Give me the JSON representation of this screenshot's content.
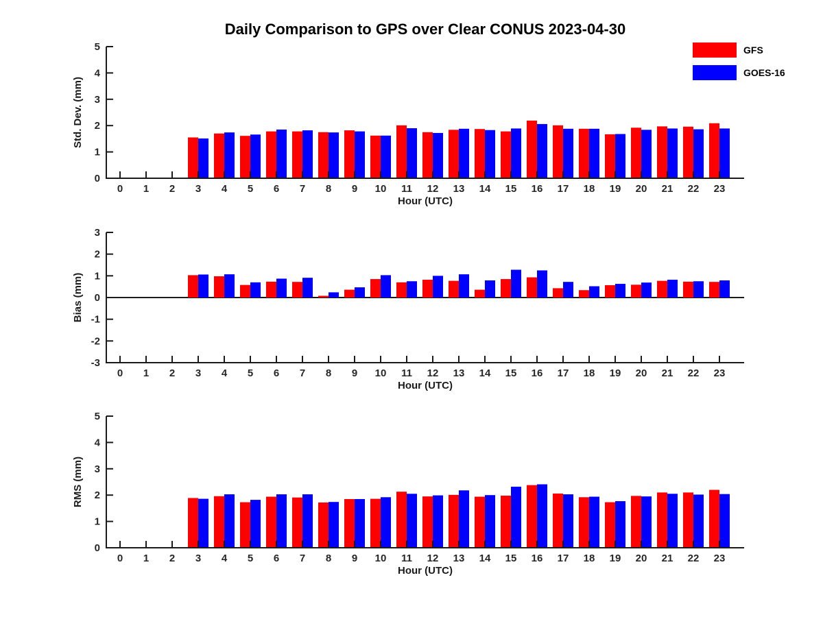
{
  "title": "Daily Comparison to GPS over Clear CONUS 2023-04-30",
  "legend": {
    "items": [
      {
        "label": "GFS",
        "color": "#ff0000"
      },
      {
        "label": "GOES-16",
        "color": "#0000ff"
      }
    ]
  },
  "colors": {
    "axis": "#1a1a1a",
    "tick_text": "#262626",
    "background": "#ffffff"
  },
  "chart_data": [
    {
      "type": "bar",
      "panel": "std-dev",
      "xlabel": "Hour (UTC)",
      "ylabel": "Std. Dev. (mm)",
      "ylim": [
        0,
        5
      ],
      "yticks": [
        0,
        1,
        2,
        3,
        4,
        5
      ],
      "zero_line": false,
      "grid": false,
      "categories": [
        0,
        1,
        2,
        3,
        4,
        5,
        6,
        7,
        8,
        9,
        10,
        11,
        12,
        13,
        14,
        15,
        16,
        17,
        18,
        19,
        20,
        21,
        22,
        23
      ],
      "series": [
        {
          "name": "GFS",
          "color": "#ff0000",
          "values": [
            null,
            null,
            null,
            1.55,
            1.7,
            1.61,
            1.78,
            1.78,
            1.75,
            1.82,
            1.62,
            2.01,
            1.75,
            1.84,
            1.87,
            1.78,
            2.19,
            2.01,
            1.88,
            1.67,
            1.92,
            1.97,
            1.96,
            2.09
          ]
        },
        {
          "name": "GOES-16",
          "color": "#0000ff",
          "values": [
            null,
            null,
            null,
            1.51,
            1.74,
            1.66,
            1.85,
            1.82,
            1.74,
            1.78,
            1.62,
            1.9,
            1.72,
            1.88,
            1.83,
            1.89,
            2.06,
            1.88,
            1.88,
            1.68,
            1.84,
            1.89,
            1.86,
            1.89
          ]
        }
      ]
    },
    {
      "type": "bar",
      "panel": "bias",
      "xlabel": "Hour (UTC)",
      "ylabel": "Bias (mm)",
      "ylim": [
        -3,
        3
      ],
      "yticks": [
        -3,
        -2,
        -1,
        0,
        1,
        2,
        3
      ],
      "zero_line": true,
      "grid": false,
      "categories": [
        0,
        1,
        2,
        3,
        4,
        5,
        6,
        7,
        8,
        9,
        10,
        11,
        12,
        13,
        14,
        15,
        16,
        17,
        18,
        19,
        20,
        21,
        22,
        23
      ],
      "series": [
        {
          "name": "GFS",
          "color": "#ff0000",
          "values": [
            null,
            null,
            null,
            1.03,
            0.98,
            0.58,
            0.73,
            0.72,
            0.08,
            0.36,
            0.85,
            0.7,
            0.82,
            0.77,
            0.36,
            0.85,
            0.93,
            0.43,
            0.34,
            0.57,
            0.59,
            0.77,
            0.73,
            0.72
          ]
        },
        {
          "name": "GOES-16",
          "color": "#0000ff",
          "values": [
            null,
            null,
            null,
            1.06,
            1.07,
            0.7,
            0.87,
            0.91,
            0.24,
            0.47,
            1.03,
            0.75,
            1.0,
            1.07,
            0.79,
            1.28,
            1.25,
            0.72,
            0.52,
            0.63,
            0.69,
            0.82,
            0.75,
            0.79
          ]
        }
      ]
    },
    {
      "type": "bar",
      "panel": "rms",
      "xlabel": "Hour (UTC)",
      "ylabel": "RMS (mm)",
      "ylim": [
        0,
        5
      ],
      "yticks": [
        0,
        1,
        2,
        3,
        4,
        5
      ],
      "zero_line": false,
      "grid": false,
      "categories": [
        0,
        1,
        2,
        3,
        4,
        5,
        6,
        7,
        8,
        9,
        10,
        11,
        12,
        13,
        14,
        15,
        16,
        17,
        18,
        19,
        20,
        21,
        22,
        23
      ],
      "series": [
        {
          "name": "GFS",
          "color": "#ff0000",
          "values": [
            null,
            null,
            null,
            1.89,
            1.96,
            1.73,
            1.94,
            1.91,
            1.72,
            1.85,
            1.86,
            2.13,
            1.95,
            2.01,
            1.94,
            1.98,
            2.38,
            2.06,
            1.92,
            1.73,
            1.97,
            2.1,
            2.1,
            2.2
          ]
        },
        {
          "name": "GOES-16",
          "color": "#0000ff",
          "values": [
            null,
            null,
            null,
            1.86,
            2.03,
            1.82,
            2.03,
            2.03,
            1.74,
            1.85,
            1.92,
            2.05,
            1.99,
            2.18,
            2.0,
            2.32,
            2.41,
            2.03,
            1.94,
            1.77,
            1.95,
            2.05,
            2.02,
            2.04
          ]
        }
      ]
    }
  ]
}
